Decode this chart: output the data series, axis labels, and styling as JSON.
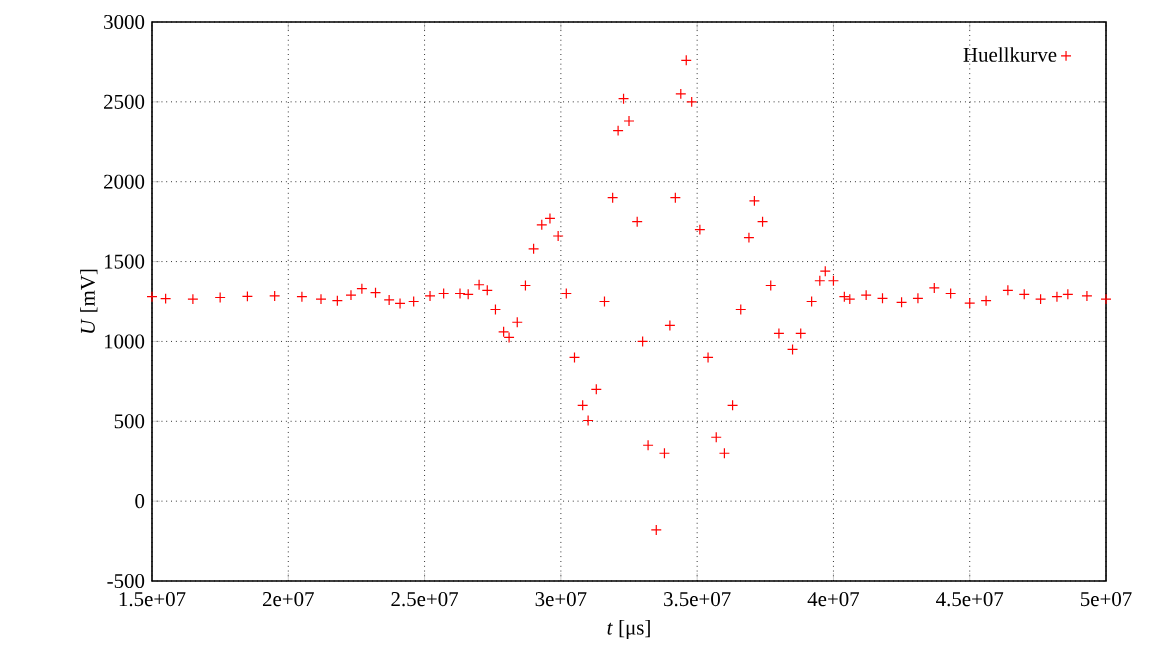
{
  "chart_data": {
    "type": "scatter",
    "xlabel": "*t* [μs]",
    "ylabel": "*U* [mV]",
    "xlim": [
      15000000,
      50000000
    ],
    "ylim": [
      -500,
      3000
    ],
    "xticks": [
      {
        "value": 15000000,
        "label": "1.5e+07"
      },
      {
        "value": 20000000,
        "label": "2e+07"
      },
      {
        "value": 25000000,
        "label": "2.5e+07"
      },
      {
        "value": 30000000,
        "label": "3e+07"
      },
      {
        "value": 35000000,
        "label": "3.5e+07"
      },
      {
        "value": 40000000,
        "label": "4e+07"
      },
      {
        "value": 45000000,
        "label": "4.5e+07"
      },
      {
        "value": 50000000,
        "label": "5e+07"
      }
    ],
    "yticks": [
      -500,
      0,
      500,
      1000,
      1500,
      2000,
      2500,
      3000
    ],
    "grid": true,
    "legend": "top right",
    "marker": "cross",
    "series": [
      {
        "name": "Huellkurve",
        "color": "#ff0000",
        "x": [
          15000000,
          15500000,
          16500000,
          17500000,
          18500000,
          19500000,
          20500000,
          21200000,
          21800000,
          22300000,
          22700000,
          23200000,
          23700000,
          24100000,
          24600000,
          25200000,
          25700000,
          26300000,
          26600000,
          27000000,
          27300000,
          27600000,
          27900000,
          28100000,
          28400000,
          28700000,
          29000000,
          29300000,
          29600000,
          29900000,
          30200000,
          30500000,
          30800000,
          31000000,
          31300000,
          31600000,
          31900000,
          32100000,
          32300000,
          32500000,
          32800000,
          33000000,
          33200000,
          33500000,
          33800000,
          34000000,
          34200000,
          34400000,
          34600000,
          34800000,
          35100000,
          35400000,
          35700000,
          36000000,
          36300000,
          36600000,
          36900000,
          37100000,
          37400000,
          37700000,
          38000000,
          38500000,
          38800000,
          39200000,
          39500000,
          39700000,
          40000000,
          40400000,
          40600000,
          41200000,
          41800000,
          42500000,
          43100000,
          43700000,
          44300000,
          45000000,
          45600000,
          46400000,
          47000000,
          47600000,
          48200000,
          48600000,
          49300000,
          50000000
        ],
        "values": [
          1280,
          1268,
          1265,
          1275,
          1282,
          1285,
          1280,
          1265,
          1255,
          1290,
          1330,
          1305,
          1260,
          1238,
          1250,
          1285,
          1300,
          1300,
          1295,
          1355,
          1320,
          1200,
          1060,
          1025,
          1120,
          1350,
          1580,
          1730,
          1770,
          1660,
          1300,
          900,
          600,
          505,
          700,
          1250,
          1900,
          2320,
          2520,
          2380,
          1750,
          1000,
          350,
          -180,
          300,
          1100,
          1900,
          2550,
          2760,
          2500,
          1700,
          900,
          400,
          300,
          600,
          1200,
          1650,
          1880,
          1750,
          1350,
          1050,
          950,
          1050,
          1250,
          1380,
          1440,
          1380,
          1280,
          1265,
          1290,
          1270,
          1245,
          1270,
          1335,
          1300,
          1240,
          1255,
          1320,
          1295,
          1265,
          1280,
          1295,
          1285,
          1265
        ]
      }
    ]
  }
}
